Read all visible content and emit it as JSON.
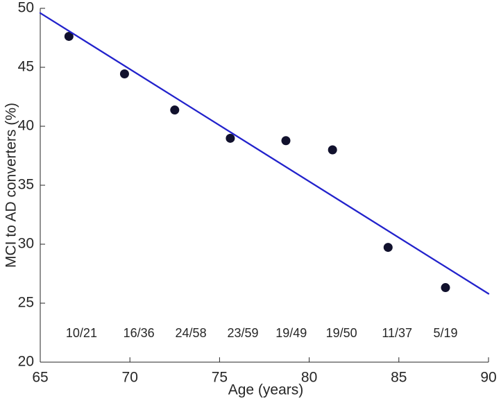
{
  "chart_data": {
    "type": "scatter",
    "title": "",
    "xlabel": "Age (years)",
    "ylabel": "MCI to AD converters (%)",
    "xlim": [
      65,
      90
    ],
    "ylim": [
      20,
      50
    ],
    "x_ticks": [
      65,
      70,
      75,
      80,
      85,
      90
    ],
    "y_ticks": [
      20,
      25,
      30,
      35,
      40,
      45,
      50
    ],
    "grid": false,
    "legend_position": "none",
    "series": [
      {
        "name": "observed-conversion-rate",
        "type": "scatter",
        "marker": "filled-circle",
        "color": "#11112d",
        "points": [
          {
            "x": 66.6,
            "y": 47.62
          },
          {
            "x": 69.7,
            "y": 44.44
          },
          {
            "x": 72.5,
            "y": 41.38
          },
          {
            "x": 75.6,
            "y": 38.98
          },
          {
            "x": 78.7,
            "y": 38.78
          },
          {
            "x": 81.3,
            "y": 38.0
          },
          {
            "x": 84.4,
            "y": 29.73
          },
          {
            "x": 87.6,
            "y": 26.32
          }
        ]
      },
      {
        "name": "linear-fit",
        "type": "line",
        "color": "#2222cc",
        "x": [
          65,
          90
        ],
        "y": [
          49.6,
          25.8
        ]
      }
    ],
    "annotations": {
      "description": "converters/total fractions printed above the x-axis",
      "y": 22.4,
      "items": [
        {
          "text": "10/21",
          "x": 67.3
        },
        {
          "text": "16/36",
          "x": 70.5
        },
        {
          "text": "24/58",
          "x": 73.4
        },
        {
          "text": "23/59",
          "x": 76.3
        },
        {
          "text": "19/49",
          "x": 79.0
        },
        {
          "text": "19/50",
          "x": 81.8
        },
        {
          "text": "11/37",
          "x": 84.9
        },
        {
          "text": "5/19",
          "x": 87.6
        }
      ]
    },
    "colors": {
      "axis": "#262626",
      "text": "#262626",
      "background": "#ffffff"
    }
  }
}
